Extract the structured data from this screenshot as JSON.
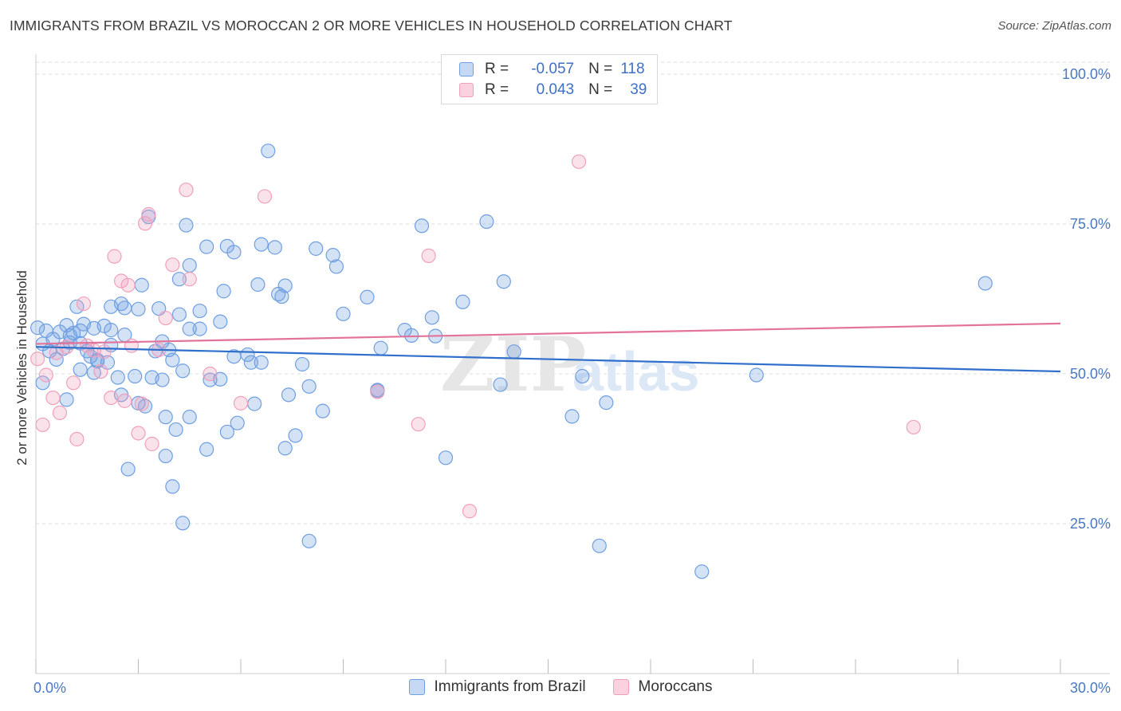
{
  "header": {
    "title": "IMMIGRANTS FROM BRAZIL VS MOROCCAN 2 OR MORE VEHICLES IN HOUSEHOLD CORRELATION CHART",
    "source": "Source: ZipAtlas.com"
  },
  "legend": {
    "rows": [
      {
        "r_label": "R =",
        "r_value": "-0.057",
        "n_label": "N =",
        "n_value": "118"
      },
      {
        "r_label": "R =",
        "r_value": "0.043",
        "n_label": "N =",
        "n_value": "39"
      }
    ]
  },
  "watermark": {
    "zip": "ZIP",
    "atlas": "atlas"
  },
  "chart_data": {
    "type": "scatter",
    "title": "IMMIGRANTS FROM BRAZIL VS MOROCCAN 2 OR MORE VEHICLES IN HOUSEHOLD CORRELATION CHART",
    "xlabel": "",
    "ylabel": "2 or more Vehicles in Household",
    "xlim": [
      0,
      30
    ],
    "ylim": [
      0,
      102
    ],
    "x_tick_labels": [
      "0.0%",
      "30.0%"
    ],
    "y_ticks": [
      25,
      50,
      75,
      100
    ],
    "y_tick_labels": [
      "25.0%",
      "50.0%",
      "75.0%",
      "100.0%"
    ],
    "colors": {
      "brazil": "#6f9fe0",
      "brazil_line": "#2f6fcb",
      "moroccans": "#f0a0bc",
      "moroccans_line": "#e2739a",
      "axis_text": "#4a78c2"
    },
    "series": [
      {
        "name": "Immigrants from Brazil",
        "r": -0.057,
        "n": 118,
        "trend": {
          "x": [
            0,
            30
          ],
          "y": [
            54.5,
            50.4
          ]
        },
        "points": [
          [
            0.05,
            57.7
          ],
          [
            0.3,
            57.2
          ],
          [
            0.5,
            55.8
          ],
          [
            0.7,
            57.0
          ],
          [
            0.9,
            58.1
          ],
          [
            0.4,
            53.8
          ],
          [
            0.6,
            52.4
          ],
          [
            1.0,
            55.2
          ],
          [
            1.1,
            56.8
          ],
          [
            1.3,
            55.1
          ],
          [
            1.5,
            53.8
          ],
          [
            1.6,
            52.9
          ],
          [
            1.8,
            52.1
          ],
          [
            2.0,
            58.0
          ],
          [
            2.1,
            51.9
          ],
          [
            0.9,
            45.7
          ],
          [
            0.2,
            48.5
          ],
          [
            1.3,
            50.7
          ],
          [
            1.7,
            50.2
          ],
          [
            2.4,
            49.4
          ],
          [
            2.5,
            46.5
          ],
          [
            2.9,
            49.6
          ],
          [
            3.0,
            45.1
          ],
          [
            3.2,
            44.6
          ],
          [
            3.4,
            49.4
          ],
          [
            3.7,
            55.4
          ],
          [
            3.9,
            54.0
          ],
          [
            4.0,
            52.3
          ],
          [
            3.8,
            42.8
          ],
          [
            4.1,
            40.7
          ],
          [
            3.8,
            36.3
          ],
          [
            2.7,
            34.1
          ],
          [
            4.0,
            31.2
          ],
          [
            4.3,
            25.1
          ],
          [
            4.5,
            42.8
          ],
          [
            5.1,
            49.0
          ],
          [
            5.4,
            49.1
          ],
          [
            5.6,
            40.3
          ],
          [
            5.0,
            37.4
          ],
          [
            5.9,
            41.8
          ],
          [
            5.8,
            52.9
          ],
          [
            6.3,
            51.9
          ],
          [
            6.6,
            51.9
          ],
          [
            7.4,
            46.5
          ],
          [
            7.6,
            39.7
          ],
          [
            7.3,
            37.6
          ],
          [
            8.0,
            47.9
          ],
          [
            8.4,
            43.8
          ],
          [
            7.8,
            51.6
          ],
          [
            8.0,
            22.1
          ],
          [
            2.6,
            61.0
          ],
          [
            2.6,
            56.5
          ],
          [
            3.6,
            60.9
          ],
          [
            4.2,
            59.9
          ],
          [
            4.5,
            57.5
          ],
          [
            4.8,
            57.5
          ],
          [
            5.4,
            58.7
          ],
          [
            4.8,
            60.5
          ],
          [
            5.5,
            63.8
          ],
          [
            6.5,
            64.9
          ],
          [
            7.1,
            63.3
          ],
          [
            7.3,
            64.7
          ],
          [
            8.2,
            70.9
          ],
          [
            8.8,
            67.9
          ],
          [
            7.2,
            62.9
          ],
          [
            6.6,
            71.6
          ],
          [
            7.0,
            71.1
          ],
          [
            5.6,
            71.3
          ],
          [
            5.8,
            70.3
          ],
          [
            5.0,
            71.2
          ],
          [
            4.2,
            65.8
          ],
          [
            4.5,
            68.1
          ],
          [
            3.3,
            76.2
          ],
          [
            4.4,
            74.8
          ],
          [
            3.1,
            64.8
          ],
          [
            3.0,
            60.8
          ],
          [
            2.5,
            61.7
          ],
          [
            2.2,
            61.2
          ],
          [
            1.2,
            61.2
          ],
          [
            1.4,
            58.3
          ],
          [
            1.7,
            57.6
          ],
          [
            2.2,
            57.3
          ],
          [
            6.8,
            87.2
          ],
          [
            8.7,
            69.8
          ],
          [
            9.0,
            60.0
          ],
          [
            9.7,
            62.8
          ],
          [
            10.1,
            54.3
          ],
          [
            10.8,
            57.3
          ],
          [
            11.0,
            56.4
          ],
          [
            11.6,
            59.4
          ],
          [
            11.7,
            56.3
          ],
          [
            11.3,
            74.7
          ],
          [
            12.5,
            62.0
          ],
          [
            13.2,
            75.4
          ],
          [
            13.6,
            48.2
          ],
          [
            13.7,
            65.4
          ],
          [
            14.0,
            53.7
          ],
          [
            15.7,
            42.9
          ],
          [
            16.0,
            49.6
          ],
          [
            16.5,
            21.3
          ],
          [
            16.7,
            45.2
          ],
          [
            19.5,
            17.0
          ],
          [
            21.1,
            49.8
          ],
          [
            27.8,
            65.1
          ],
          [
            10.0,
            47.3
          ],
          [
            12.0,
            36.0
          ],
          [
            10.0,
            47.2
          ],
          [
            0.2,
            55.0
          ],
          [
            0.8,
            54.2
          ],
          [
            1.3,
            57.2
          ],
          [
            1.8,
            52.3
          ],
          [
            2.2,
            54.8
          ],
          [
            3.7,
            49.0
          ],
          [
            3.5,
            53.8
          ],
          [
            6.2,
            53.2
          ],
          [
            6.4,
            45.0
          ],
          [
            4.3,
            50.5
          ],
          [
            1.0,
            56.4
          ]
        ]
      },
      {
        "name": "Moroccans",
        "r": 0.043,
        "n": 39,
        "trend": {
          "x": [
            0,
            30
          ],
          "y": [
            55.0,
            58.4
          ]
        },
        "points": [
          [
            0.05,
            52.5
          ],
          [
            0.2,
            41.5
          ],
          [
            0.3,
            49.8
          ],
          [
            0.5,
            46.0
          ],
          [
            0.6,
            53.5
          ],
          [
            0.7,
            43.5
          ],
          [
            0.9,
            54.5
          ],
          [
            1.1,
            48.5
          ],
          [
            1.2,
            39.1
          ],
          [
            1.4,
            61.7
          ],
          [
            1.5,
            54.7
          ],
          [
            1.7,
            53.9
          ],
          [
            1.9,
            50.4
          ],
          [
            2.0,
            53.7
          ],
          [
            2.2,
            46.0
          ],
          [
            2.3,
            69.6
          ],
          [
            2.5,
            65.5
          ],
          [
            2.7,
            64.8
          ],
          [
            2.8,
            54.7
          ],
          [
            3.1,
            45.0
          ],
          [
            3.0,
            40.1
          ],
          [
            3.2,
            75.1
          ],
          [
            3.3,
            76.6
          ],
          [
            3.4,
            38.3
          ],
          [
            3.6,
            54.0
          ],
          [
            3.8,
            59.3
          ],
          [
            4.0,
            68.2
          ],
          [
            4.4,
            80.7
          ],
          [
            4.5,
            65.8
          ],
          [
            5.1,
            50.0
          ],
          [
            6.0,
            45.1
          ],
          [
            6.7,
            79.6
          ],
          [
            10.0,
            47.0
          ],
          [
            11.2,
            41.6
          ],
          [
            11.5,
            69.7
          ],
          [
            12.7,
            27.1
          ],
          [
            15.9,
            85.4
          ],
          [
            25.7,
            41.1
          ],
          [
            2.6,
            45.5
          ]
        ]
      }
    ]
  }
}
